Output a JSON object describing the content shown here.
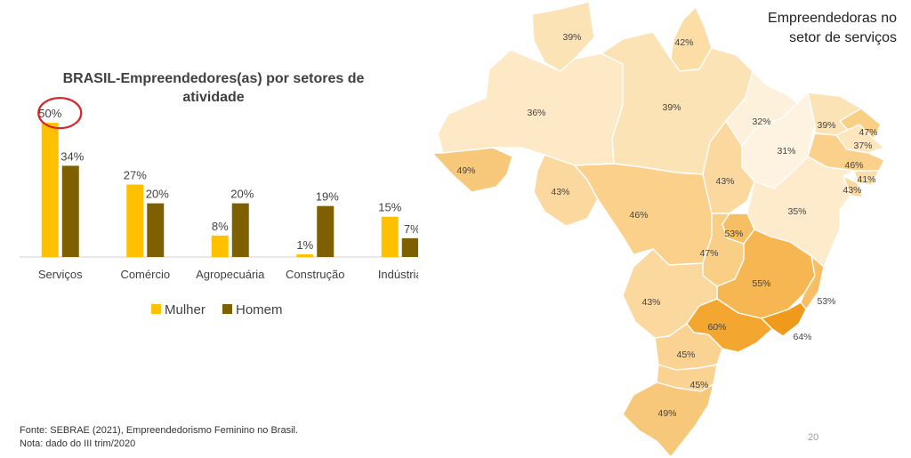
{
  "chart_data": {
    "type": "bar",
    "title": "BRASIL-Empreendedores(as) por setores de atividade",
    "categories": [
      "Serviços",
      "Comércio",
      "Agropecuária",
      "Construção",
      "Indústria"
    ],
    "series": [
      {
        "name": "Mulher",
        "values": [
          50,
          27,
          8,
          1,
          15
        ],
        "labels": [
          "50%",
          "27%",
          "8%",
          "1%",
          "15%"
        ],
        "color": "#FFC000"
      },
      {
        "name": "Homem",
        "values": [
          34,
          20,
          20,
          19,
          7
        ],
        "labels": [
          "34%",
          "20%",
          "20%",
          "19%",
          "7%"
        ],
        "color": "#7F6000"
      }
    ],
    "ylim": [
      0,
      55
    ],
    "legend": "bottom",
    "grid": false,
    "annotation": {
      "type": "circle",
      "target": "Serviços / Mulher",
      "color": "#D9262B"
    }
  },
  "source": {
    "line1": "Fonte: SEBRAE (2021), Empreendedorismo Feminino no Brasil.",
    "line2": "Nota: dado do III trim/2020"
  },
  "map": {
    "title_line1": "Empreendedoras no",
    "title_line2": "setor de serviços",
    "states": [
      {
        "id": "RR",
        "label": "39%",
        "color": "#FCE3B5"
      },
      {
        "id": "AP",
        "label": "42%",
        "color": "#FCDDA6"
      },
      {
        "id": "AM",
        "label": "36%",
        "color": "#FDE9C6"
      },
      {
        "id": "PA",
        "label": "39%",
        "color": "#FCE3B5"
      },
      {
        "id": "MA",
        "label": "32%",
        "color": "#FEF1DC"
      },
      {
        "id": "PI",
        "label": "31%",
        "color": "#FEF3E1"
      },
      {
        "id": "CE",
        "label": "39%",
        "color": "#FCE3B5"
      },
      {
        "id": "RN",
        "label": "47%",
        "color": "#F9CE85"
      },
      {
        "id": "PB",
        "label": "37%",
        "color": "#FDE6BD"
      },
      {
        "id": "PE",
        "label": "46%",
        "color": "#FAD08B"
      },
      {
        "id": "AL",
        "label": "41%",
        "color": "#FCDEAA"
      },
      {
        "id": "SE",
        "label": "43%",
        "color": "#FBD99E"
      },
      {
        "id": "AC",
        "label": "49%",
        "color": "#F8C87A"
      },
      {
        "id": "RO",
        "label": "43%",
        "color": "#FBD99E"
      },
      {
        "id": "TO",
        "label": "43%",
        "color": "#FBD99E"
      },
      {
        "id": "BA",
        "label": "35%",
        "color": "#FDEBCB"
      },
      {
        "id": "MT",
        "label": "46%",
        "color": "#FAD08B"
      },
      {
        "id": "DF",
        "label": "53%",
        "color": "#F7BE63"
      },
      {
        "id": "GO",
        "label": "47%",
        "color": "#F9CE85"
      },
      {
        "id": "MG",
        "label": "55%",
        "color": "#F6B752"
      },
      {
        "id": "ES",
        "label": "53%",
        "color": "#F7BE63"
      },
      {
        "id": "MS",
        "label": "43%",
        "color": "#FBD99E"
      },
      {
        "id": "SP",
        "label": "60%",
        "color": "#F3A630"
      },
      {
        "id": "RJ",
        "label": "64%",
        "color": "#F09A1B"
      },
      {
        "id": "PR",
        "label": "45%",
        "color": "#FAD292"
      },
      {
        "id": "SC",
        "label": "45%",
        "color": "#FAD292"
      },
      {
        "id": "RS",
        "label": "49%",
        "color": "#F8C87A"
      }
    ]
  },
  "page_number": "20"
}
